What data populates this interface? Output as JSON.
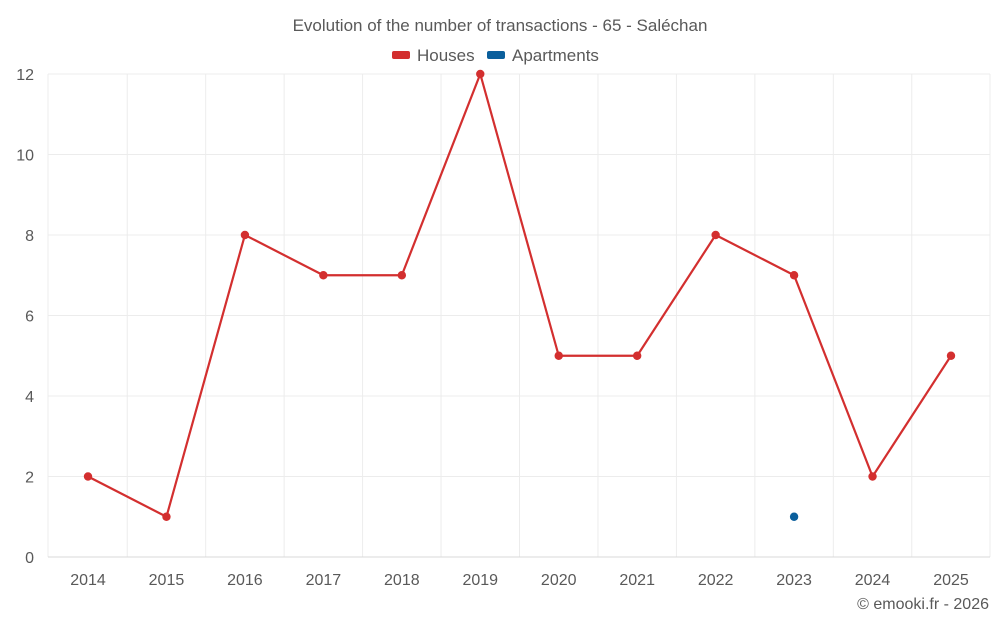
{
  "chart_data": {
    "type": "line",
    "title": "Evolution of the number of transactions - 65 - Saléchan",
    "xlabel": "",
    "ylabel": "",
    "categories": [
      "2014",
      "2015",
      "2016",
      "2017",
      "2018",
      "2019",
      "2020",
      "2021",
      "2022",
      "2023",
      "2024",
      "2025"
    ],
    "ylim": [
      0,
      12
    ],
    "yticks": [
      0,
      2,
      4,
      6,
      8,
      10,
      12
    ],
    "grid": true,
    "legend_position": "top-center",
    "series": [
      {
        "name": "Houses",
        "color": "#d32f2f",
        "values": [
          2,
          1,
          8,
          7,
          7,
          12,
          5,
          5,
          8,
          7,
          2,
          5
        ]
      },
      {
        "name": "Apartments",
        "color": "#0b5f9c",
        "values": [
          null,
          null,
          null,
          null,
          null,
          null,
          null,
          null,
          null,
          1,
          null,
          null
        ]
      }
    ]
  },
  "credit": "© emooki.fr - 2026"
}
